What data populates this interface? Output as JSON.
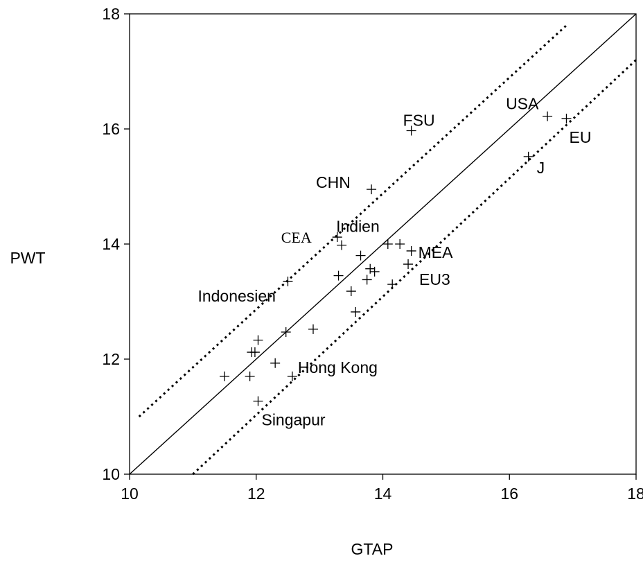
{
  "chart_data": {
    "type": "scatter",
    "xlabel": "GTAP",
    "ylabel": "PWT",
    "xlim": [
      10,
      18
    ],
    "ylim": [
      10,
      18
    ],
    "x_ticks": [
      10,
      12,
      14,
      16,
      18
    ],
    "y_ticks": [
      10,
      12,
      14,
      16,
      18
    ],
    "grid": false,
    "points": [
      {
        "x": 11.5,
        "y": 11.7
      },
      {
        "x": 11.9,
        "y": 11.7
      },
      {
        "x": 11.93,
        "y": 12.12
      },
      {
        "x": 11.98,
        "y": 12.12
      },
      {
        "x": 12.03,
        "y": 12.33
      },
      {
        "x": 12.03,
        "y": 11.27
      },
      {
        "x": 12.3,
        "y": 11.93
      },
      {
        "x": 12.47,
        "y": 12.47
      },
      {
        "x": 12.5,
        "y": 13.35
      },
      {
        "x": 12.57,
        "y": 11.7
      },
      {
        "x": 12.9,
        "y": 12.52
      },
      {
        "x": 13.28,
        "y": 14.12
      },
      {
        "x": 13.3,
        "y": 13.45
      },
      {
        "x": 13.35,
        "y": 13.98
      },
      {
        "x": 13.5,
        "y": 13.18
      },
      {
        "x": 13.57,
        "y": 12.82
      },
      {
        "x": 13.65,
        "y": 13.8
      },
      {
        "x": 13.75,
        "y": 13.38
      },
      {
        "x": 13.8,
        "y": 13.57
      },
      {
        "x": 13.82,
        "y": 14.95
      },
      {
        "x": 13.87,
        "y": 13.52
      },
      {
        "x": 14.08,
        "y": 14.0
      },
      {
        "x": 14.15,
        "y": 13.3
      },
      {
        "x": 14.27,
        "y": 14.0
      },
      {
        "x": 14.4,
        "y": 13.65
      },
      {
        "x": 14.45,
        "y": 13.88
      },
      {
        "x": 14.45,
        "y": 15.97
      },
      {
        "x": 16.3,
        "y": 15.52
      },
      {
        "x": 16.6,
        "y": 16.22
      },
      {
        "x": 16.9,
        "y": 16.18
      }
    ],
    "annotations": [
      {
        "text": "FSU",
        "x": 14.45,
        "y": 15.97
      },
      {
        "text": "USA",
        "x": 16.6,
        "y": 16.22
      },
      {
        "text": "EU",
        "x": 16.9,
        "y": 16.18
      },
      {
        "text": "J",
        "x": 16.3,
        "y": 15.52
      },
      {
        "text": "CHN",
        "x": 13.82,
        "y": 14.95
      },
      {
        "text": "Indien",
        "x": 13.35,
        "y": 13.98
      },
      {
        "text": "CEA",
        "x": 13.28,
        "y": 14.12
      },
      {
        "text": "MEA",
        "x": 14.45,
        "y": 13.88
      },
      {
        "text": "EU3",
        "x": 14.4,
        "y": 13.65
      },
      {
        "text": "Indonesien",
        "x": 12.5,
        "y": 13.35
      },
      {
        "text": "Hong Kong",
        "x": 12.57,
        "y": 11.7
      },
      {
        "text": "Singapur",
        "x": 12.03,
        "y": 11.27
      }
    ],
    "reference_lines": [
      {
        "style": "solid",
        "x1": 10,
        "y1": 10,
        "x2": 18,
        "y2": 18
      },
      {
        "style": "dotted",
        "x1": 10.15,
        "y1": 11.0,
        "x2": 16.9,
        "y2": 17.8
      },
      {
        "style": "dotted",
        "x1": 11.0,
        "y1": 10.0,
        "x2": 18.0,
        "y2": 17.2
      }
    ]
  }
}
